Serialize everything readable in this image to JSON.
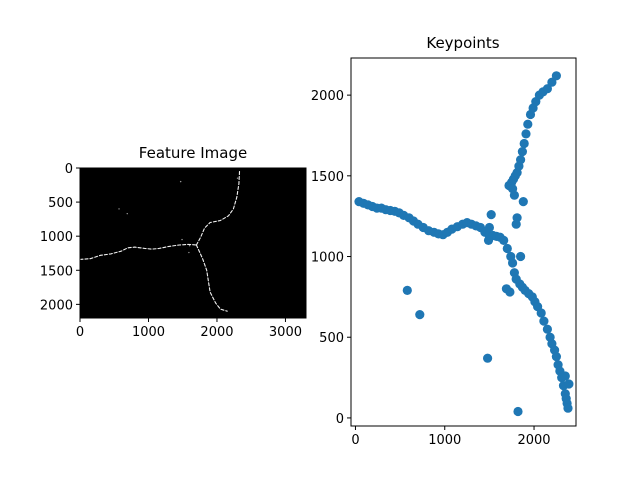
{
  "chart_data": [
    {
      "type": "heatmap",
      "title": "Feature Image",
      "xlabel": "",
      "ylabel": "",
      "xlim": [
        0,
        3300
      ],
      "ylim": [
        2200,
        0
      ],
      "xticks": [
        0,
        1000,
        2000,
        3000
      ],
      "yticks": [
        0,
        500,
        1000,
        1500,
        2000
      ],
      "grid": false,
      "colormap": "gray",
      "background": "#000000",
      "foreground": "#f2f2f2",
      "ridges": [
        [
          [
            0,
            1340
          ],
          [
            150,
            1330
          ],
          [
            300,
            1280
          ],
          [
            450,
            1260
          ],
          [
            600,
            1220
          ],
          [
            700,
            1170
          ],
          [
            800,
            1160
          ],
          [
            950,
            1180
          ],
          [
            1050,
            1190
          ],
          [
            1150,
            1180
          ],
          [
            1300,
            1150
          ],
          [
            1450,
            1130
          ],
          [
            1580,
            1120
          ],
          [
            1700,
            1130
          ]
        ],
        [
          [
            1700,
            1130
          ],
          [
            1760,
            1020
          ],
          [
            1820,
            880
          ],
          [
            1900,
            800
          ],
          [
            2050,
            770
          ],
          [
            2170,
            700
          ],
          [
            2240,
            600
          ],
          [
            2290,
            430
          ],
          [
            2320,
            230
          ],
          [
            2330,
            30
          ]
        ],
        [
          [
            1700,
            1130
          ],
          [
            1790,
            1330
          ],
          [
            1850,
            1500
          ],
          [
            1900,
            1820
          ],
          [
            1980,
            1980
          ],
          [
            2050,
            2070
          ],
          [
            2150,
            2100
          ]
        ]
      ],
      "specks": [
        [
          570,
          600
        ],
        [
          690,
          670
        ],
        [
          1490,
          1050
        ],
        [
          1600,
          1140
        ],
        [
          1590,
          1240
        ],
        [
          1470,
          200
        ],
        [
          2300,
          150
        ]
      ]
    },
    {
      "type": "scatter",
      "title": "Keypoints",
      "xlabel": "",
      "ylabel": "",
      "xlim": [
        -50,
        2470
      ],
      "ylim": [
        -50,
        2230
      ],
      "xticks": [
        0,
        1000,
        2000
      ],
      "yticks": [
        0,
        500,
        1000,
        1500,
        2000
      ],
      "grid": false,
      "marker_color": "#1f77b4",
      "x": [
        40,
        90,
        140,
        190,
        240,
        290,
        340,
        390,
        440,
        490,
        540,
        600,
        650,
        700,
        760,
        820,
        880,
        930,
        980,
        1030,
        1080,
        1140,
        1200,
        1250,
        1300,
        1350,
        1400,
        1450,
        1500,
        1540,
        1580,
        1620,
        1660,
        1700,
        1740,
        1760,
        1780,
        1800,
        1840,
        1870,
        1900,
        1940,
        1980,
        2010,
        2040,
        2080,
        2110,
        2150,
        2180,
        2200,
        2230,
        2250,
        2270,
        2290,
        2310,
        2330,
        2350,
        2360,
        2370,
        2380,
        1720,
        1750,
        1770,
        1790,
        1810,
        1830,
        1850,
        1870,
        1890,
        1910,
        1930,
        1960,
        1990,
        2020,
        2060,
        2100,
        2150,
        2200,
        2250,
        1500,
        1520,
        1490,
        1810,
        580,
        720,
        1480,
        1820,
        1880,
        1780,
        1760,
        1800,
        1850,
        2390,
        2350,
        1690,
        1730
      ],
      "y": [
        1340,
        1330,
        1320,
        1310,
        1300,
        1300,
        1290,
        1285,
        1280,
        1270,
        1255,
        1240,
        1220,
        1200,
        1180,
        1160,
        1150,
        1140,
        1135,
        1150,
        1170,
        1185,
        1200,
        1210,
        1200,
        1190,
        1180,
        1150,
        1130,
        1130,
        1125,
        1120,
        1100,
        1050,
        1000,
        960,
        900,
        860,
        830,
        810,
        790,
        770,
        750,
        720,
        690,
        650,
        600,
        550,
        500,
        460,
        420,
        380,
        330,
        290,
        250,
        200,
        150,
        120,
        90,
        60,
        1440,
        1460,
        1480,
        1500,
        1520,
        1560,
        1600,
        1650,
        1700,
        1760,
        1820,
        1880,
        1920,
        1960,
        2000,
        2020,
        2040,
        2080,
        2120,
        1180,
        1260,
        1100,
        1240,
        790,
        640,
        370,
        40,
        1340,
        1380,
        1420,
        1200,
        1000,
        210,
        260,
        800,
        780
      ]
    }
  ]
}
